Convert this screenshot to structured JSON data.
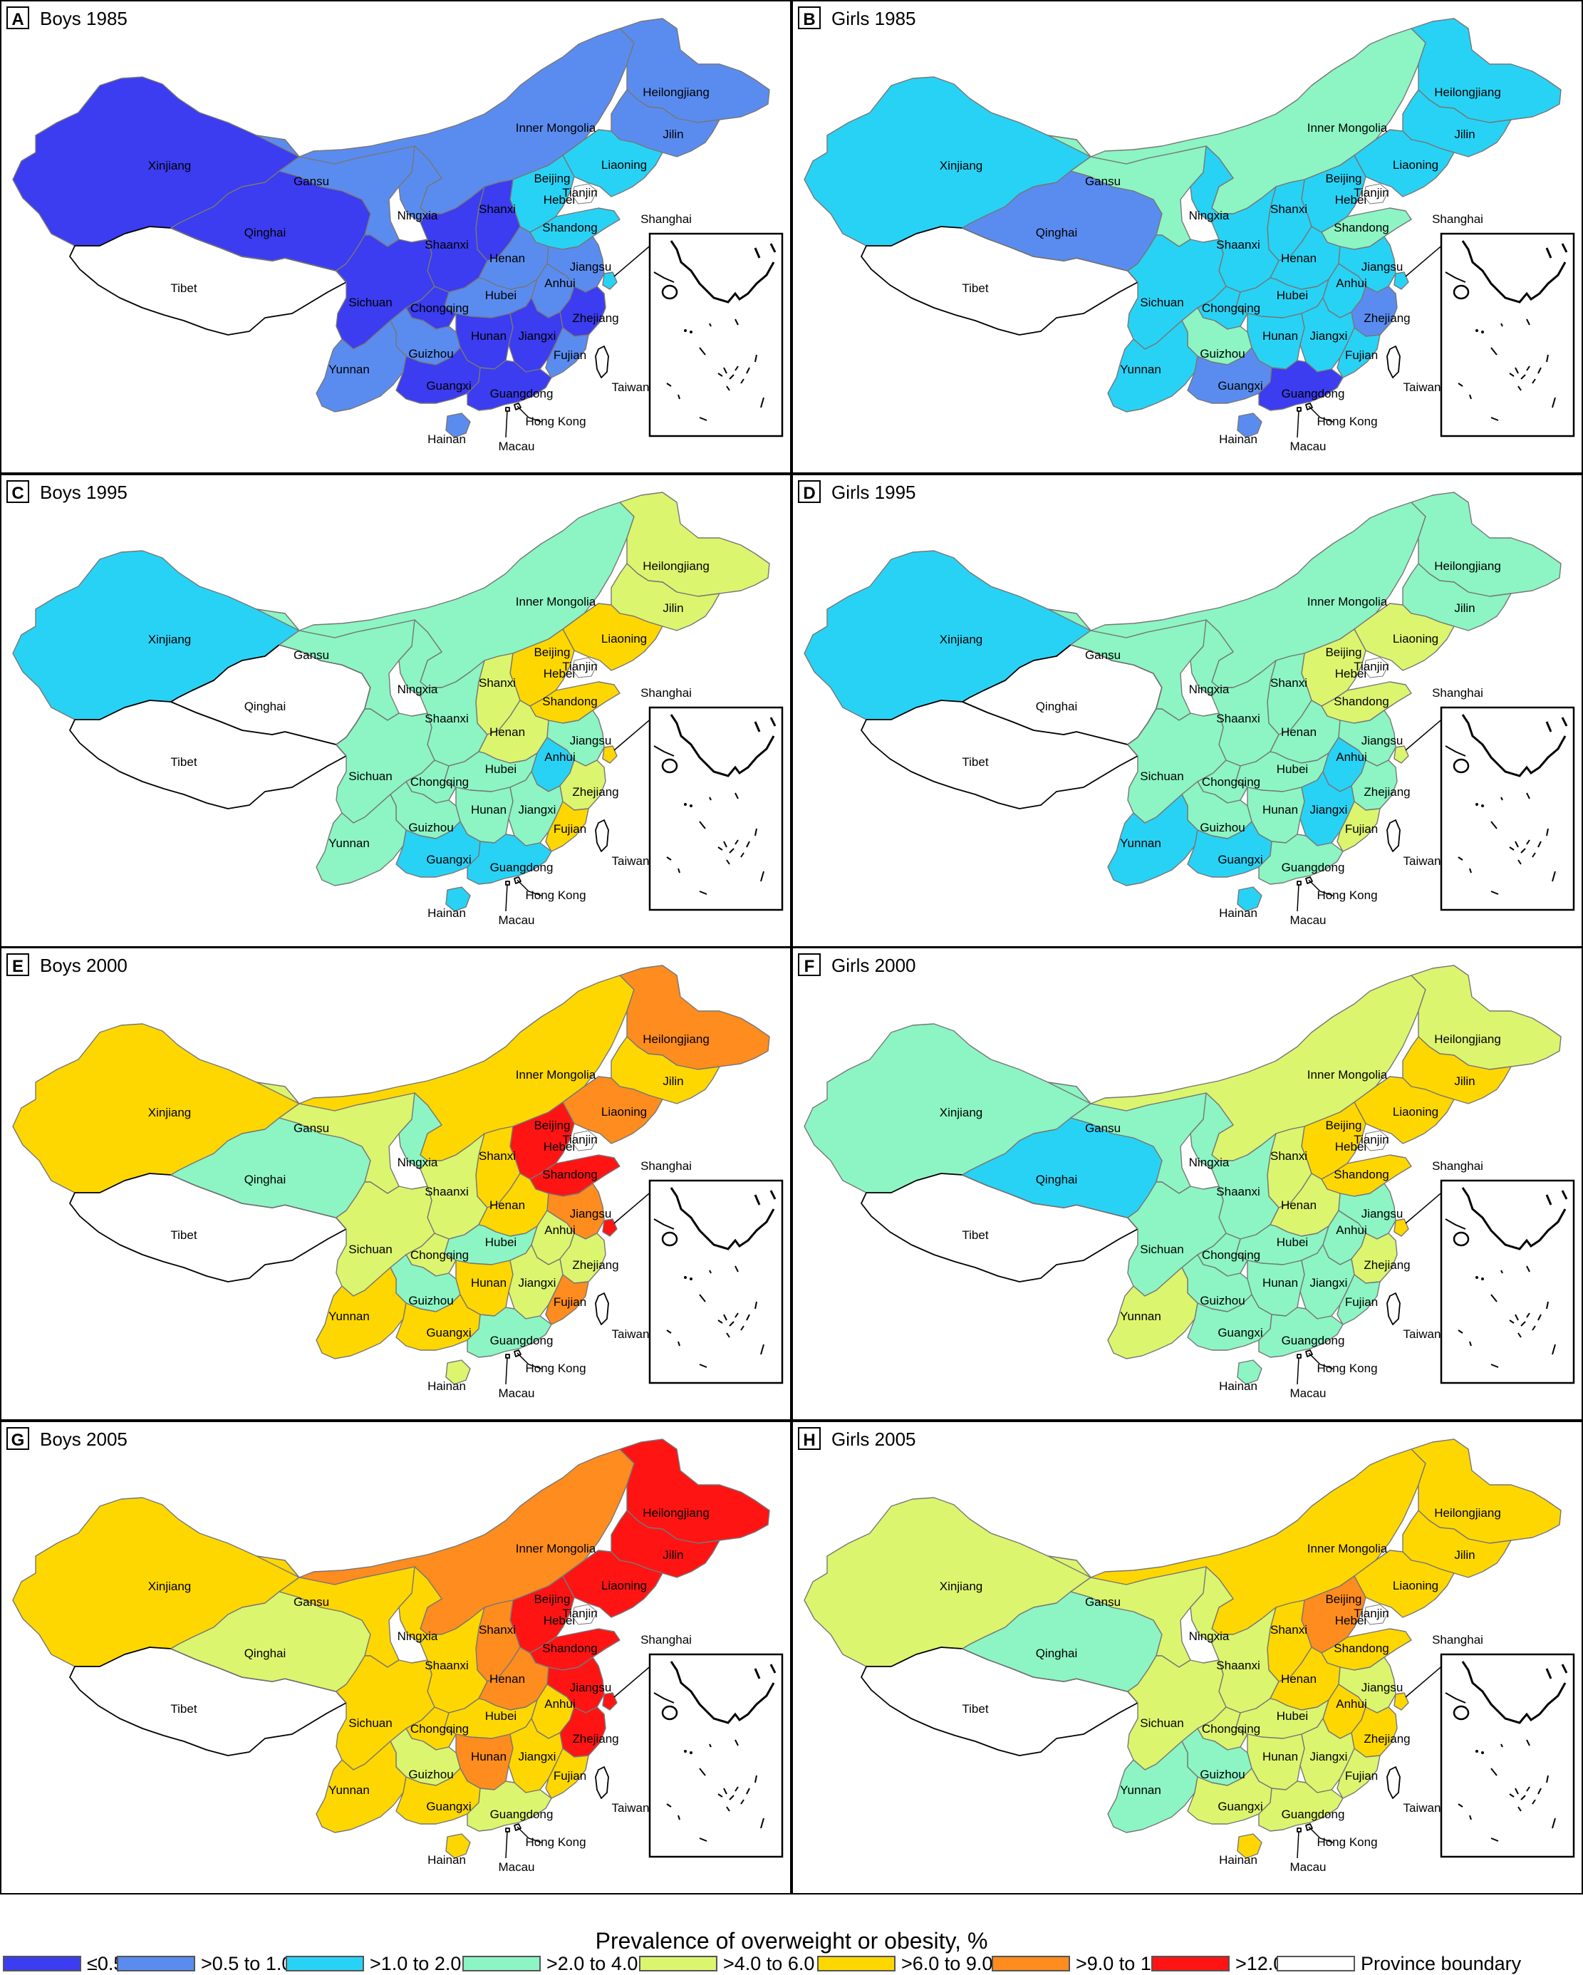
{
  "legend": {
    "title": "Prevalence of overweight or obesity, %",
    "categories": [
      {
        "label": "≤0.5",
        "color": "#3c3cf0"
      },
      {
        "label": ">0.5 to 1.0",
        "color": "#5a8cf0"
      },
      {
        "label": ">1.0 to 2.0",
        "color": "#28d2f5"
      },
      {
        "label": ">2.0 to 4.0",
        "color": "#8cf5c3"
      },
      {
        "label": ">4.0 to 6.0",
        "color": "#dcf56e"
      },
      {
        "label": ">6.0 to 9.0",
        "color": "#ffd700"
      },
      {
        "label": ">9.0 to 12.0",
        "color": "#ff8c1e"
      },
      {
        "label": ">12.0",
        "color": "#ff1414"
      },
      {
        "label": "Province boundary",
        "color": "#ffffff"
      }
    ]
  },
  "province_labels": [
    "Xinjiang",
    "Tibet",
    "Qinghai",
    "Gansu",
    "Inner Mongolia",
    "Heilongjiang",
    "Jilin",
    "Liaoning",
    "Beijing",
    "Tianjin",
    "Hebei",
    "Shanxi",
    "Ningxia",
    "Shaanxi",
    "Shandong",
    "Henan",
    "Jiangsu",
    "Shanghai",
    "Anhui",
    "Hubei",
    "Sichuan",
    "Chongqing",
    "Zhejiang",
    "Hunan",
    "Jiangxi",
    "Guizhou",
    "Yunnan",
    "Fujian",
    "Guangxi",
    "Guangdong",
    "Taiwan",
    "Hong Kong",
    "Macau",
    "Hainan"
  ],
  "panels": [
    {
      "letter": "A",
      "title": "Boys 1985",
      "cats": {
        "Xinjiang": 0,
        "Tibet": 8,
        "Qinghai": 0,
        "Gansu": 1,
        "Inner Mongolia": 1,
        "Heilongjiang": 1,
        "Jilin": 1,
        "Liaoning": 2,
        "Beijing": 2,
        "Tianjin": 2,
        "Hebei": 2,
        "Shanxi": 0,
        "Ningxia": 1,
        "Shaanxi": 0,
        "Shandong": 2,
        "Henan": 1,
        "Jiangsu": 1,
        "Shanghai": 2,
        "Anhui": 1,
        "Hubei": 1,
        "Sichuan": 0,
        "Chongqing": 0,
        "Zhejiang": 0,
        "Hunan": 0,
        "Jiangxi": 0,
        "Guizhou": 1,
        "Yunnan": 1,
        "Fujian": 1,
        "Guangxi": 0,
        "Guangdong": 0,
        "Taiwan": 8,
        "Hong Kong": 8,
        "Macau": 8,
        "Hainan": 1
      }
    },
    {
      "letter": "B",
      "title": "Girls 1985",
      "cats": {
        "Xinjiang": 2,
        "Tibet": 8,
        "Qinghai": 1,
        "Gansu": 3,
        "Inner Mongolia": 3,
        "Heilongjiang": 2,
        "Jilin": 2,
        "Liaoning": 2,
        "Beijing": 3,
        "Tianjin": 2,
        "Hebei": 2,
        "Shanxi": 2,
        "Ningxia": 2,
        "Shaanxi": 2,
        "Shandong": 3,
        "Henan": 2,
        "Jiangsu": 2,
        "Shanghai": 2,
        "Anhui": 2,
        "Hubei": 2,
        "Sichuan": 2,
        "Chongqing": 2,
        "Zhejiang": 1,
        "Hunan": 2,
        "Jiangxi": 2,
        "Guizhou": 3,
        "Yunnan": 2,
        "Fujian": 2,
        "Guangxi": 1,
        "Guangdong": 0,
        "Taiwan": 8,
        "Hong Kong": 8,
        "Macau": 8,
        "Hainan": 1
      }
    },
    {
      "letter": "C",
      "title": "Boys 1995",
      "cats": {
        "Xinjiang": 2,
        "Tibet": 8,
        "Qinghai": 8,
        "Gansu": 3,
        "Inner Mongolia": 3,
        "Heilongjiang": 4,
        "Jilin": 4,
        "Liaoning": 5,
        "Beijing": 5,
        "Tianjin": 5,
        "Hebei": 5,
        "Shanxi": 4,
        "Ningxia": 3,
        "Shaanxi": 3,
        "Shandong": 5,
        "Henan": 4,
        "Jiangsu": 3,
        "Shanghai": 5,
        "Anhui": 2,
        "Hubei": 3,
        "Sichuan": 3,
        "Chongqing": 3,
        "Zhejiang": 4,
        "Hunan": 3,
        "Jiangxi": 3,
        "Guizhou": 3,
        "Yunnan": 3,
        "Fujian": 5,
        "Guangxi": 2,
        "Guangdong": 2,
        "Taiwan": 8,
        "Hong Kong": 8,
        "Macau": 8,
        "Hainan": 2
      }
    },
    {
      "letter": "D",
      "title": "Girls 1995",
      "cats": {
        "Xinjiang": 2,
        "Tibet": 8,
        "Qinghai": 8,
        "Gansu": 3,
        "Inner Mongolia": 3,
        "Heilongjiang": 3,
        "Jilin": 3,
        "Liaoning": 4,
        "Beijing": 4,
        "Tianjin": 4,
        "Hebei": 4,
        "Shanxi": 3,
        "Ningxia": 3,
        "Shaanxi": 3,
        "Shandong": 4,
        "Henan": 3,
        "Jiangsu": 3,
        "Shanghai": 4,
        "Anhui": 2,
        "Hubei": 3,
        "Sichuan": 3,
        "Chongqing": 3,
        "Zhejiang": 3,
        "Hunan": 3,
        "Jiangxi": 2,
        "Guizhou": 3,
        "Yunnan": 2,
        "Fujian": 4,
        "Guangxi": 2,
        "Guangdong": 3,
        "Taiwan": 8,
        "Hong Kong": 8,
        "Macau": 8,
        "Hainan": 2
      }
    },
    {
      "letter": "E",
      "title": "Boys 2000",
      "cats": {
        "Xinjiang": 5,
        "Tibet": 8,
        "Qinghai": 3,
        "Gansu": 4,
        "Inner Mongolia": 5,
        "Heilongjiang": 6,
        "Jilin": 5,
        "Liaoning": 6,
        "Beijing": 7,
        "Tianjin": 7,
        "Hebei": 7,
        "Shanxi": 5,
        "Ningxia": 3,
        "Shaanxi": 4,
        "Shandong": 7,
        "Henan": 5,
        "Jiangsu": 6,
        "Shanghai": 7,
        "Anhui": 4,
        "Hubei": 3,
        "Sichuan": 4,
        "Chongqing": 4,
        "Zhejiang": 4,
        "Hunan": 5,
        "Jiangxi": 4,
        "Guizhou": 3,
        "Yunnan": 5,
        "Fujian": 6,
        "Guangxi": 5,
        "Guangdong": 3,
        "Taiwan": 8,
        "Hong Kong": 8,
        "Macau": 8,
        "Hainan": 4
      }
    },
    {
      "letter": "F",
      "title": "Girls 2000",
      "cats": {
        "Xinjiang": 3,
        "Tibet": 8,
        "Qinghai": 2,
        "Gansu": 3,
        "Inner Mongolia": 4,
        "Heilongjiang": 4,
        "Jilin": 5,
        "Liaoning": 5,
        "Beijing": 5,
        "Tianjin": 5,
        "Hebei": 5,
        "Shanxi": 4,
        "Ningxia": 3,
        "Shaanxi": 3,
        "Shandong": 5,
        "Henan": 4,
        "Jiangsu": 3,
        "Shanghai": 5,
        "Anhui": 3,
        "Hubei": 3,
        "Sichuan": 3,
        "Chongqing": 3,
        "Zhejiang": 4,
        "Hunan": 3,
        "Jiangxi": 3,
        "Guizhou": 3,
        "Yunnan": 4,
        "Fujian": 3,
        "Guangxi": 3,
        "Guangdong": 3,
        "Taiwan": 8,
        "Hong Kong": 8,
        "Macau": 8,
        "Hainan": 3
      }
    },
    {
      "letter": "G",
      "title": "Boys 2005",
      "cats": {
        "Xinjiang": 5,
        "Tibet": 8,
        "Qinghai": 4,
        "Gansu": 5,
        "Inner Mongolia": 6,
        "Heilongjiang": 7,
        "Jilin": 7,
        "Liaoning": 7,
        "Beijing": 7,
        "Tianjin": 7,
        "Hebei": 7,
        "Shanxi": 6,
        "Ningxia": 5,
        "Shaanxi": 5,
        "Shandong": 7,
        "Henan": 6,
        "Jiangsu": 7,
        "Shanghai": 7,
        "Anhui": 5,
        "Hubei": 5,
        "Sichuan": 5,
        "Chongqing": 5,
        "Zhejiang": 7,
        "Hunan": 6,
        "Jiangxi": 5,
        "Guizhou": 4,
        "Yunnan": 5,
        "Fujian": 5,
        "Guangxi": 5,
        "Guangdong": 4,
        "Taiwan": 8,
        "Hong Kong": 8,
        "Macau": 8,
        "Hainan": 5
      }
    },
    {
      "letter": "H",
      "title": "Girls 2005",
      "cats": {
        "Xinjiang": 4,
        "Tibet": 8,
        "Qinghai": 3,
        "Gansu": 4,
        "Inner Mongolia": 5,
        "Heilongjiang": 5,
        "Jilin": 5,
        "Liaoning": 5,
        "Beijing": 6,
        "Tianjin": 5,
        "Hebei": 6,
        "Shanxi": 5,
        "Ningxia": 4,
        "Shaanxi": 4,
        "Shandong": 5,
        "Henan": 5,
        "Jiangsu": 4,
        "Shanghai": 5,
        "Anhui": 5,
        "Hubei": 4,
        "Sichuan": 4,
        "Chongqing": 4,
        "Zhejiang": 5,
        "Hunan": 4,
        "Jiangxi": 4,
        "Guizhou": 3,
        "Yunnan": 3,
        "Fujian": 4,
        "Guangxi": 4,
        "Guangdong": 4,
        "Taiwan": 8,
        "Hong Kong": 8,
        "Macau": 8,
        "Hainan": 5
      }
    }
  ]
}
